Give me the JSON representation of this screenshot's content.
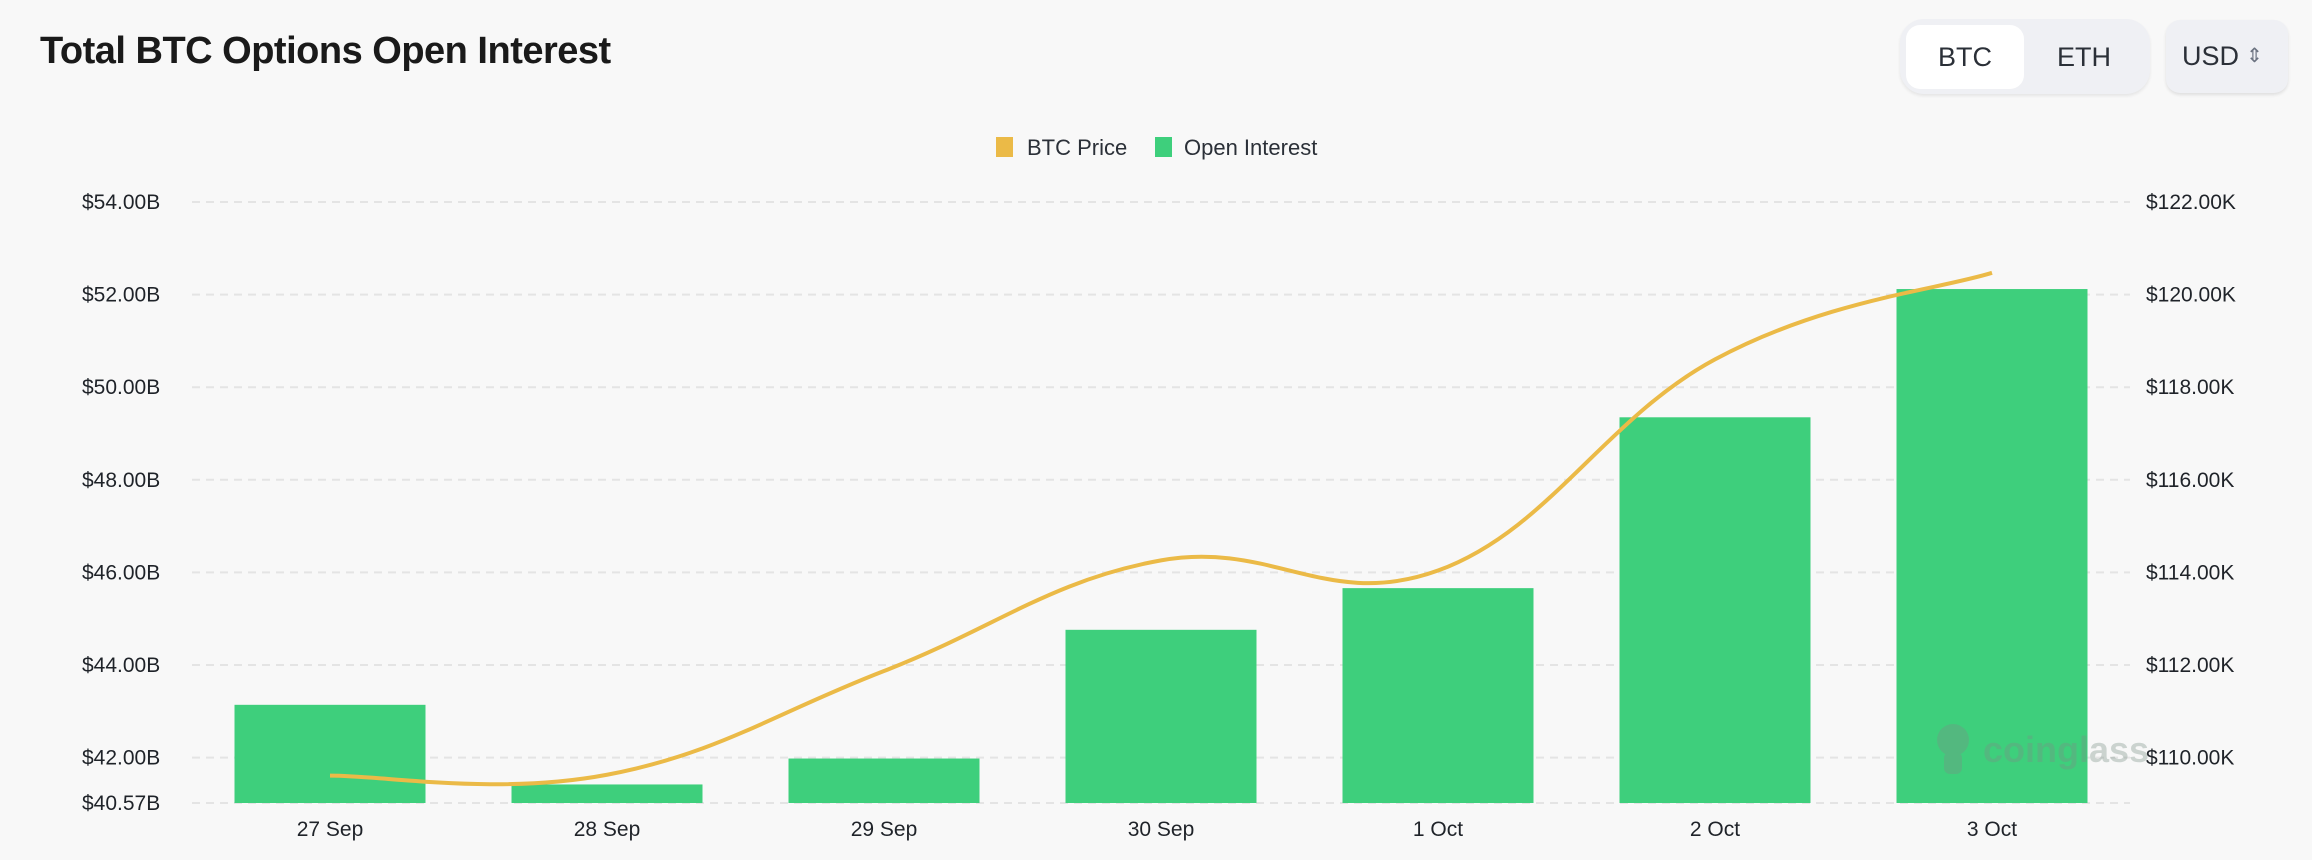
{
  "header": {
    "title": "Total BTC Options Open Interest"
  },
  "asset_toggle": {
    "options": [
      "BTC",
      "ETH"
    ],
    "selected": "BTC"
  },
  "currency_select": {
    "value": "USD",
    "icon": "chevron-up-down-icon"
  },
  "watermark": "coinglass",
  "chart_data": {
    "type": "bar+line",
    "categories": [
      "27 Sep",
      "28 Sep",
      "29 Sep",
      "30 Sep",
      "1 Oct",
      "2 Oct",
      "3 Oct"
    ],
    "series": [
      {
        "name": "Open Interest",
        "type": "bar",
        "axis": "left",
        "color": "#3ecf7c",
        "values": [
          43.14,
          41.42,
          41.98,
          44.76,
          45.66,
          49.35,
          52.12
        ]
      },
      {
        "name": "BTC Price",
        "type": "line",
        "axis": "right",
        "color": "#ebba47",
        "values": [
          109.61,
          109.63,
          111.87,
          114.26,
          114.04,
          118.6,
          120.47
        ]
      }
    ],
    "left_axis": {
      "ticks": [
        "$54.00B",
        "$52.00B",
        "$50.00B",
        "$48.00B",
        "$46.00B",
        "$44.00B",
        "$42.00B",
        "$40.57B"
      ],
      "unit": "B USD",
      "range": [
        40.57,
        54
      ]
    },
    "right_axis": {
      "ticks": [
        "$122.00K",
        "$120.00K",
        "$118.00K",
        "$116.00K",
        "$114.00K",
        "$112.00K",
        "$110.00K"
      ],
      "unit": "K USD",
      "range": [
        109,
        122
      ]
    },
    "legend": {
      "position": "top-center",
      "items": [
        "BTC Price",
        "Open Interest"
      ]
    },
    "grid": true
  }
}
